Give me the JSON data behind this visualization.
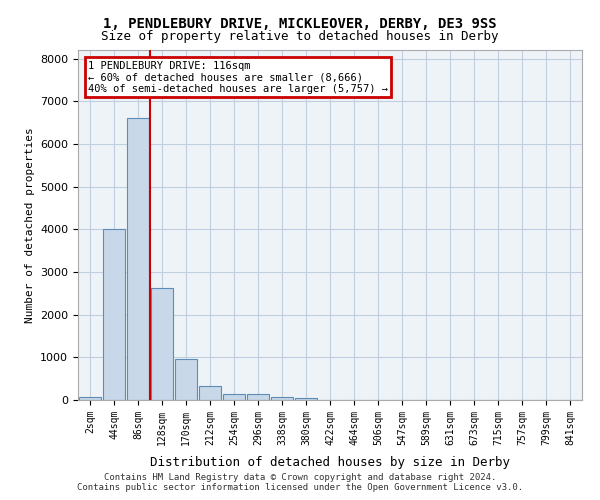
{
  "title_line1": "1, PENDLEBURY DRIVE, MICKLEOVER, DERBY, DE3 9SS",
  "title_line2": "Size of property relative to detached houses in Derby",
  "xlabel": "Distribution of detached houses by size in Derby",
  "ylabel": "Number of detached properties",
  "bin_labels": [
    "2sqm",
    "44sqm",
    "86sqm",
    "128sqm",
    "170sqm",
    "212sqm",
    "254sqm",
    "296sqm",
    "338sqm",
    "380sqm",
    "422sqm",
    "464sqm",
    "506sqm",
    "547sqm",
    "589sqm",
    "631sqm",
    "673sqm",
    "715sqm",
    "757sqm",
    "799sqm",
    "841sqm"
  ],
  "bar_values": [
    80,
    4000,
    6600,
    2620,
    960,
    330,
    140,
    130,
    65,
    50,
    0,
    0,
    0,
    0,
    0,
    0,
    0,
    0,
    0,
    0,
    0
  ],
  "bar_color": "#c8d8e8",
  "bar_edgecolor": "#5b8db8",
  "vline_x": 2.5,
  "vline_color": "#cc0000",
  "annotation_text": "1 PENDLEBURY DRIVE: 116sqm\n← 60% of detached houses are smaller (8,666)\n40% of semi-detached houses are larger (5,757) →",
  "annotation_box_color": "#cc0000",
  "annotation_bg": "white",
  "ylim": [
    0,
    8200
  ],
  "yticks": [
    0,
    1000,
    2000,
    3000,
    4000,
    5000,
    6000,
    7000,
    8000
  ],
  "grid_color": "#c0cfe0",
  "footer_text": "Contains HM Land Registry data © Crown copyright and database right 2024.\nContains public sector information licensed under the Open Government Licence v3.0.",
  "background_color": "#eef3f8"
}
